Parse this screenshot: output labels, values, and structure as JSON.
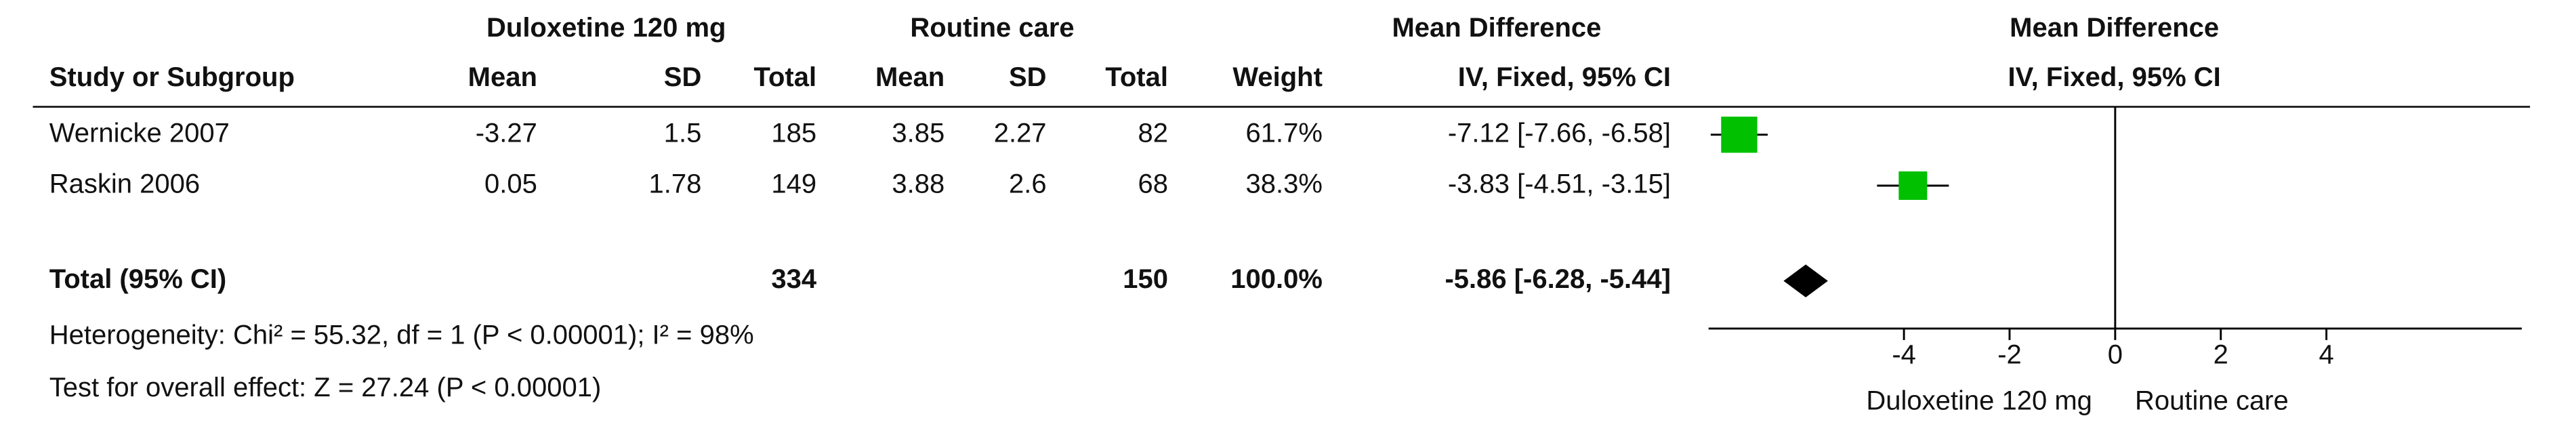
{
  "chart_data": {
    "type": "forest",
    "group_headers": {
      "experimental": "Duloxetine 120 mg",
      "control": "Routine care",
      "effect": "Mean Difference",
      "plot": "Mean Difference"
    },
    "columns": [
      "Study or Subgroup",
      "Mean",
      "SD",
      "Total",
      "Mean",
      "SD",
      "Total",
      "Weight",
      "IV, Fixed, 95% CI"
    ],
    "plot_header": "IV, Fixed, 95% CI",
    "studies": [
      {
        "name": "Wernicke 2007",
        "exp_mean": -3.27,
        "exp_sd": 1.5,
        "exp_total": 185,
        "ctl_mean": 3.85,
        "ctl_sd": 2.27,
        "ctl_total": 82,
        "weight": 61.7,
        "weight_label": "61.7%",
        "md": -7.12,
        "ci": [
          -7.66,
          -6.58
        ],
        "ci_label": "-7.12 [-7.66, -6.58]"
      },
      {
        "name": "Raskin 2006",
        "exp_mean": 0.05,
        "exp_sd": 1.78,
        "exp_total": 149,
        "ctl_mean": 3.88,
        "ctl_sd": 2.6,
        "ctl_total": 68,
        "weight": 38.3,
        "weight_label": "38.3%",
        "md": -3.83,
        "ci": [
          -4.51,
          -3.15
        ],
        "ci_label": "-3.83 [-4.51, -3.15]"
      }
    ],
    "total": {
      "name": "Total (95% CI)",
      "exp_total": 334,
      "ctl_total": 150,
      "weight": 100,
      "weight_label": "100.0%",
      "md": -5.86,
      "ci": [
        -6.28,
        -5.44
      ],
      "ci_label": "-5.86 [-6.28, -5.44]"
    },
    "heterogeneity": "Heterogeneity: Chi² = 55.32, df = 1 (P < 0.00001); I² = 98%",
    "overall_effect": "Test for overall effect: Z = 27.24 (P < 0.00001)",
    "xlim": [
      -7.7,
      7.7
    ],
    "xticks": [
      -4,
      -2,
      0,
      2,
      4
    ],
    "xlabel_left": "Duloxetine 120 mg",
    "xlabel_right": "Routine care",
    "color": "#00c000"
  }
}
